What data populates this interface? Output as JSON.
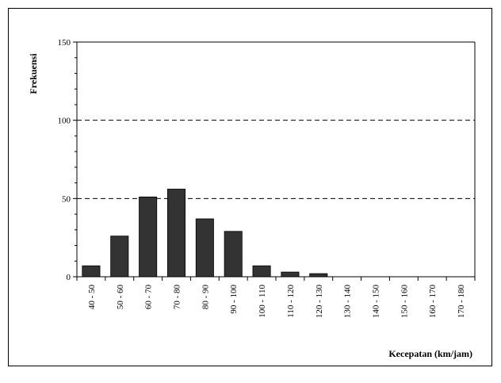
{
  "chart_data": {
    "type": "bar",
    "categories": [
      "40 - 50",
      "50 - 60",
      "60 - 70",
      "70 - 80",
      "80 - 90",
      "90 - 100",
      "100 - 110",
      "110 - 120",
      "120 - 130",
      "130 - 140",
      "140 - 150",
      "150 - 160",
      "160 - 170",
      "170 - 180"
    ],
    "values": [
      7,
      26,
      51,
      56,
      37,
      29,
      7,
      3,
      2,
      0,
      0,
      0,
      0,
      0
    ],
    "xlabel": "Kecepatan (km/jam)",
    "ylabel": "Frekuensi",
    "ylim": [
      0,
      150
    ],
    "yticks": [
      0,
      50,
      100,
      150
    ],
    "grid": "dashed horizontal at 50 and 100",
    "legend": "none",
    "colors": {
      "bar": "#333333",
      "bar_edge": "#000000",
      "grid": "#000000"
    }
  }
}
